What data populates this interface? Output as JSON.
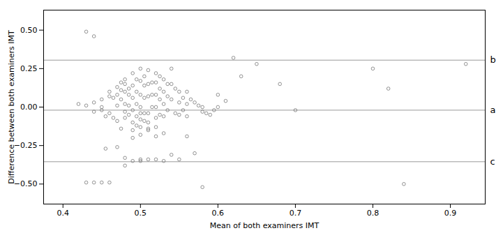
{
  "chart_data": {
    "type": "scatter",
    "xlabel": "Mean of both examiners IMT",
    "ylabel": "Difference between both examiners IMT",
    "xlim": [
      0.375,
      0.945
    ],
    "ylim": [
      -0.63,
      0.63
    ],
    "xticks": [
      0.4,
      0.5,
      0.6,
      0.7,
      0.8,
      0.9
    ],
    "yticks": [
      {
        "value": -0.5,
        "label": "−0.50"
      },
      {
        "value": -0.25,
        "label": "−0.25"
      },
      {
        "value": 0.0,
        "label": "0.00"
      },
      {
        "value": 0.25,
        "label": "0.25"
      },
      {
        "value": 0.5,
        "label": "0.50"
      }
    ],
    "grid": false,
    "color": "#777777",
    "marker": "open_circle",
    "annotations": [
      {
        "y": 0.305,
        "text": "b",
        "color": "#999999"
      },
      {
        "y": -0.02,
        "text": "a",
        "color": "#999999"
      },
      {
        "y": -0.355,
        "text": "c",
        "color": "#999999"
      }
    ],
    "x": [
      0.42,
      0.43,
      0.44,
      0.44,
      0.45,
      0.45,
      0.45,
      0.455,
      0.455,
      0.46,
      0.46,
      0.46,
      0.465,
      0.465,
      0.47,
      0.47,
      0.47,
      0.47,
      0.475,
      0.475,
      0.475,
      0.475,
      0.48,
      0.48,
      0.48,
      0.48,
      0.48,
      0.48,
      0.485,
      0.485,
      0.485,
      0.485,
      0.49,
      0.49,
      0.49,
      0.49,
      0.49,
      0.49,
      0.495,
      0.495,
      0.495,
      0.495,
      0.495,
      0.5,
      0.5,
      0.5,
      0.5,
      0.5,
      0.5,
      0.5,
      0.5,
      0.505,
      0.505,
      0.505,
      0.505,
      0.505,
      0.51,
      0.51,
      0.51,
      0.51,
      0.51,
      0.51,
      0.515,
      0.515,
      0.515,
      0.52,
      0.52,
      0.52,
      0.52,
      0.52,
      0.52,
      0.525,
      0.525,
      0.525,
      0.525,
      0.53,
      0.53,
      0.53,
      0.53,
      0.535,
      0.535,
      0.535,
      0.54,
      0.54,
      0.54,
      0.545,
      0.545,
      0.55,
      0.55,
      0.55,
      0.555,
      0.555,
      0.56,
      0.56,
      0.56,
      0.565,
      0.57,
      0.575,
      0.58,
      0.58,
      0.585,
      0.59,
      0.595,
      0.6,
      0.6,
      0.61,
      0.62,
      0.63,
      0.65,
      0.68,
      0.7,
      0.8,
      0.82,
      0.84,
      0.92,
      0.43,
      0.44,
      0.45,
      0.46,
      0.47,
      0.48,
      0.49,
      0.5,
      0.51,
      0.52,
      0.53,
      0.54,
      0.55,
      0.56,
      0.57,
      0.58,
      0.43,
      0.44,
      0.48,
      0.49,
      0.5,
      0.51,
      0.52,
      0.53
    ],
    "values": [
      0.02,
      0.01,
      0.03,
      -0.03,
      0.05,
      0.0,
      -0.02,
      -0.06,
      -0.27,
      0.1,
      0.07,
      -0.04,
      0.06,
      -0.07,
      0.13,
      0.08,
      0.01,
      -0.09,
      0.16,
      0.11,
      0.05,
      -0.14,
      0.18,
      0.15,
      0.1,
      0.02,
      -0.03,
      -0.07,
      0.12,
      0.08,
      0.01,
      -0.05,
      0.22,
      0.14,
      0.06,
      -0.02,
      -0.1,
      -0.15,
      0.18,
      0.1,
      0.02,
      -0.06,
      -0.12,
      0.25,
      0.17,
      0.08,
      0.0,
      -0.04,
      -0.08,
      -0.13,
      -0.18,
      0.2,
      0.14,
      0.06,
      -0.04,
      -0.09,
      0.24,
      0.15,
      0.07,
      -0.04,
      -0.1,
      -0.14,
      0.16,
      0.08,
      0.0,
      0.22,
      0.16,
      0.08,
      0.0,
      -0.07,
      -0.13,
      0.2,
      0.12,
      0.05,
      -0.05,
      0.18,
      0.1,
      0.02,
      -0.06,
      0.15,
      0.07,
      -0.02,
      0.25,
      0.15,
      0.05,
      0.12,
      -0.04,
      0.1,
      0.03,
      -0.05,
      0.06,
      -0.02,
      0.1,
      0.02,
      -0.06,
      0.05,
      0.03,
      0.01,
      -0.03,
      0.0,
      -0.04,
      -0.05,
      -0.02,
      0.08,
      0.0,
      0.04,
      0.32,
      0.2,
      0.28,
      0.15,
      -0.02,
      0.25,
      0.12,
      -0.5,
      0.28,
      -0.49,
      -0.49,
      -0.49,
      -0.49,
      -0.26,
      -0.38,
      -0.2,
      -0.34,
      -0.15,
      -0.19,
      -0.17,
      -0.31,
      -0.34,
      -0.19,
      -0.3,
      -0.52,
      0.49,
      0.46,
      -0.33,
      -0.35,
      -0.35,
      -0.34,
      -0.34,
      -0.35
    ]
  }
}
